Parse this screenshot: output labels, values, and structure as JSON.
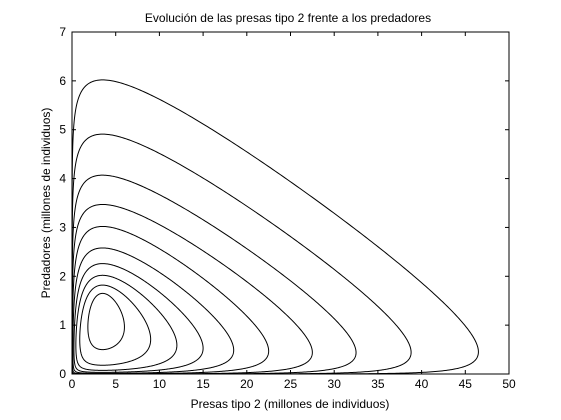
{
  "chart_data": {
    "type": "line",
    "title": "Evolución de las presas tipo 2 frente a los predadores",
    "xlabel": "Presas tipo 2 (millones de individuos)",
    "ylabel": "Predadores (millones de individuos)",
    "xlim": [
      0,
      50
    ],
    "ylim": [
      0,
      7
    ],
    "xticks": [
      "0",
      "5",
      "10",
      "15",
      "20",
      "25",
      "30",
      "35",
      "40",
      "45",
      "50"
    ],
    "yticks": [
      "0",
      "1",
      "2",
      "3",
      "4",
      "5",
      "6",
      "7"
    ],
    "grid": false,
    "legend": "none",
    "line_color": "#000000",
    "series": [
      {
        "xmax": 6.0,
        "ymax": 1.65
      },
      {
        "xmax": 9.0,
        "ymax": 1.82
      },
      {
        "xmax": 12.0,
        "ymax": 2.02
      },
      {
        "xmax": 15.0,
        "ymax": 2.26
      },
      {
        "xmax": 18.5,
        "ymax": 2.58
      },
      {
        "xmax": 22.5,
        "ymax": 3.02
      },
      {
        "xmax": 27.5,
        "ymax": 3.47
      },
      {
        "xmax": 32.5,
        "ymax": 4.07
      },
      {
        "xmax": 38.8,
        "ymax": 4.91
      },
      {
        "xmax": 46.5,
        "ymax": 6.02
      }
    ]
  }
}
